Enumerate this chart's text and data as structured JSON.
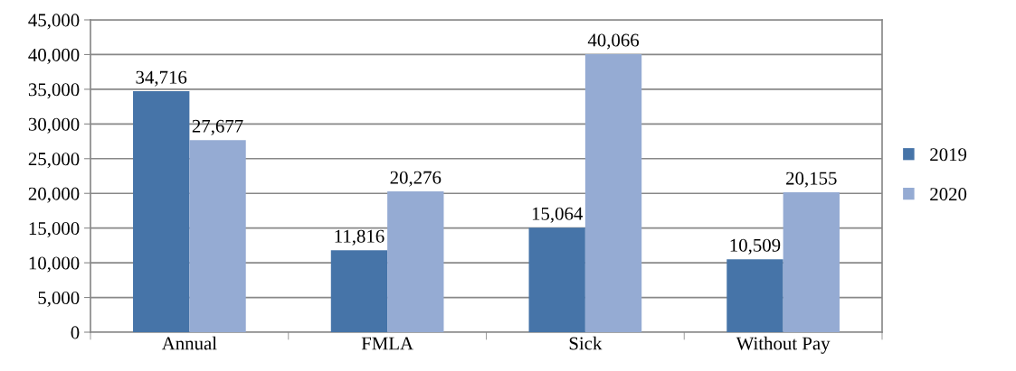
{
  "chart_data": {
    "type": "bar",
    "categories": [
      "Annual",
      "FMLA",
      "Sick",
      "Without Pay"
    ],
    "series": [
      {
        "name": "2019",
        "color": "#4674a8",
        "values": [
          34716,
          11816,
          15064,
          10509
        ],
        "value_labels": [
          "34,716",
          "11,816",
          "15,064",
          "10,509"
        ]
      },
      {
        "name": "2020",
        "color": "#95abd3",
        "values": [
          27677,
          20276,
          40066,
          20155
        ],
        "value_labels": [
          "27,677",
          "20,276",
          "40,066",
          "20,155"
        ]
      }
    ],
    "ylim": [
      0,
      45000
    ],
    "yticks": [
      {
        "value": 0,
        "label": "0"
      },
      {
        "value": 5000,
        "label": "5,000"
      },
      {
        "value": 10000,
        "label": "10,000"
      },
      {
        "value": 15000,
        "label": "15,000"
      },
      {
        "value": 20000,
        "label": "20,000"
      },
      {
        "value": 25000,
        "label": "25,000"
      },
      {
        "value": 30000,
        "label": "30,000"
      },
      {
        "value": 35000,
        "label": "35,000"
      },
      {
        "value": 40000,
        "label": "40,000"
      },
      {
        "value": 45000,
        "label": "45,000"
      }
    ],
    "grid": "y",
    "legend": "right"
  }
}
